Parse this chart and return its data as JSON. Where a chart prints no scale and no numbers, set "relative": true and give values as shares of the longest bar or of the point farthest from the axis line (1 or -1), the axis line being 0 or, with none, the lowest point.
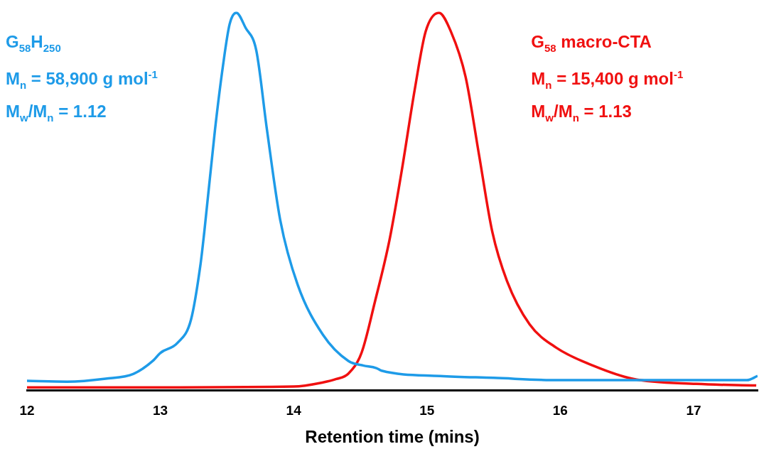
{
  "chart_data": {
    "type": "line",
    "relative": true,
    "xlabel": "Retention time (mins)",
    "xlim": [
      12,
      17.48
    ],
    "xticks": [
      12,
      13,
      14,
      15,
      16,
      17
    ],
    "grid": false,
    "legend": false,
    "marker": "none",
    "line_style": "solid",
    "series": [
      {
        "name": "G$_{58}$H$_{250}$",
        "color": "#1e9be8",
        "x": [
          12,
          12.3,
          12.59,
          12.8,
          12.95,
          13.0,
          13.13,
          13.23,
          13.3,
          13.33,
          13.41,
          13.47,
          13.52,
          13.57,
          13.64,
          13.72,
          13.8,
          13.9,
          14.03,
          14.22,
          14.41,
          14.52,
          14.62,
          14.66,
          15.1,
          15.5,
          15.98,
          16.5,
          17.02,
          17.4,
          17.48
        ],
        "values": [
          0.025,
          0.023,
          0.031,
          0.044,
          0.08,
          0.099,
          0.126,
          0.187,
          0.33,
          0.42,
          0.69,
          0.86,
          0.97,
          1.0,
          0.96,
          0.9,
          0.69,
          0.45,
          0.28,
          0.147,
          0.078,
          0.066,
          0.059,
          0.052,
          0.038,
          0.033,
          0.027,
          0.027,
          0.027,
          0.027,
          0.038
        ]
      },
      {
        "name": "G$_{58}$ macro-CTA",
        "color": "#f01010",
        "x": [
          12,
          13,
          14,
          14.22,
          14.32,
          14.41,
          14.51,
          14.61,
          14.72,
          14.81,
          14.91,
          14.99,
          15.09,
          15.18,
          15.29,
          15.39,
          15.49,
          15.6,
          15.77,
          15.97,
          16.25,
          16.54,
          17.02,
          17.47
        ],
        "values": [
          0.008,
          0.008,
          0.01,
          0.021,
          0.03,
          0.044,
          0.1,
          0.235,
          0.4,
          0.58,
          0.8,
          0.95,
          1.0,
          0.95,
          0.83,
          0.625,
          0.42,
          0.29,
          0.175,
          0.113,
          0.065,
          0.031,
          0.017,
          0.013
        ]
      }
    ],
    "annotations": [
      "M$_{n}$ = 58,900 g mol$^{-1}$",
      "M$_{w}$/M$_{n}$ = 1.12",
      "M$_{n}$ = 15,400 g mol$^{-1}$",
      "M$_{w}$/M$_{n}$ = 1.13"
    ]
  }
}
